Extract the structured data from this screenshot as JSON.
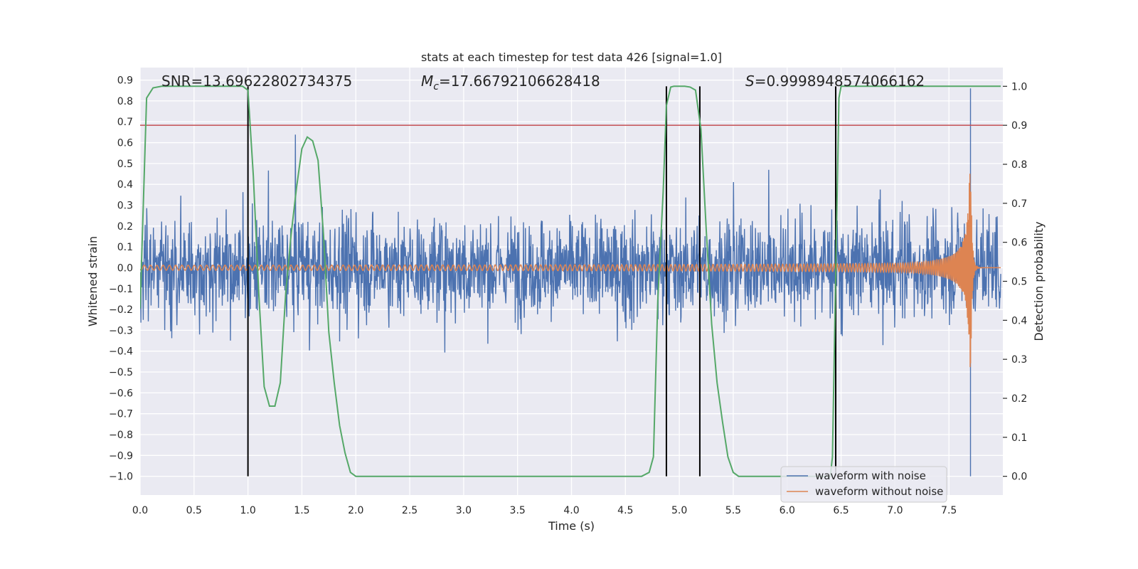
{
  "chart_data": {
    "type": "line",
    "title": "stats at each timestep for test data 426 [signal=1.0]",
    "xlabel": "Time (s)",
    "ylabel": "Whitened strain",
    "ylabel_right": "Detection probability",
    "xlim": [
      0.0,
      8.0
    ],
    "ylim": [
      -1.09,
      0.96
    ],
    "ylim_right": [
      -0.048,
      1.048
    ],
    "grid": true,
    "legend_position": "lower-right",
    "x_ticks": [
      "0.0",
      "0.5",
      "1.0",
      "1.5",
      "2.0",
      "2.5",
      "3.0",
      "3.5",
      "4.0",
      "4.5",
      "5.0",
      "5.5",
      "6.0",
      "6.5",
      "7.0",
      "7.5"
    ],
    "y_ticks": [
      "−1.0",
      "−0.9",
      "−0.8",
      "−0.7",
      "−0.6",
      "−0.5",
      "−0.4",
      "−0.3",
      "−0.2",
      "−0.1",
      "0.0",
      "0.1",
      "0.2",
      "0.3",
      "0.4",
      "0.5",
      "0.6",
      "0.7",
      "0.8",
      "0.9"
    ],
    "y_right_ticks": [
      "0.0",
      "0.1",
      "0.2",
      "0.3",
      "0.4",
      "0.5",
      "0.6",
      "0.7",
      "0.8",
      "0.9",
      "1.0"
    ],
    "annotations": {
      "snr": "SNR=13.69622802734375",
      "mc_value": "=17.66792106628418",
      "s_value": "=0.9998948574066162"
    },
    "colors": {
      "noisy": "#4c72b0",
      "clean": "#dd8452",
      "probability": "#55a868",
      "threshold": "#c44e52",
      "events": "#000000",
      "background": "#eaeaf2"
    },
    "threshold": 0.9,
    "event_lines_x": [
      1.0,
      4.88,
      5.19,
      6.45
    ],
    "event_lines_right_range": [
      0.0,
      1.0
    ],
    "spike_x": 7.7,
    "waveform_with_noise": {
      "name": "waveform with noise",
      "typical_amplitude": 0.3,
      "max": 0.86,
      "min": -1.0
    },
    "waveform_without_noise": {
      "name": "waveform without noise",
      "start_amplitude": 0.012,
      "peak_amplitude": 0.5,
      "peak_min": -0.6,
      "merger_time": 7.7
    },
    "series": [
      {
        "name": "Detection probability",
        "axis": "right",
        "x": [
          0.0,
          0.06,
          0.12,
          0.2,
          0.3,
          0.45,
          0.6,
          0.8,
          0.95,
          1.0,
          1.05,
          1.1,
          1.15,
          1.2,
          1.25,
          1.3,
          1.35,
          1.4,
          1.45,
          1.5,
          1.55,
          1.6,
          1.65,
          1.7,
          1.75,
          1.8,
          1.85,
          1.9,
          1.95,
          2.0,
          2.05,
          2.2,
          2.5,
          3.0,
          3.5,
          4.0,
          4.5,
          4.65,
          4.72,
          4.76,
          4.8,
          4.85,
          4.88,
          4.92,
          4.95,
          5.0,
          5.05,
          5.1,
          5.15,
          5.2,
          5.25,
          5.3,
          5.35,
          5.4,
          5.45,
          5.5,
          5.55,
          5.6,
          6.0,
          6.3,
          6.4,
          6.42,
          6.45,
          6.48,
          6.5,
          6.55,
          7.0,
          7.5,
          7.98
        ],
        "y": [
          0.43,
          0.97,
          0.996,
          1.0,
          1.0,
          1.0,
          1.0,
          1.0,
          1.0,
          0.99,
          0.77,
          0.47,
          0.23,
          0.18,
          0.18,
          0.24,
          0.47,
          0.62,
          0.74,
          0.84,
          0.87,
          0.86,
          0.81,
          0.62,
          0.37,
          0.24,
          0.13,
          0.06,
          0.01,
          0.0,
          0.0,
          0.0,
          0.0,
          0.0,
          0.0,
          0.0,
          0.0,
          0.0,
          0.01,
          0.05,
          0.45,
          0.73,
          0.95,
          0.998,
          1.0,
          1.0,
          1.0,
          0.998,
          0.99,
          0.89,
          0.63,
          0.39,
          0.24,
          0.14,
          0.05,
          0.01,
          0.0,
          0.0,
          0.0,
          0.0,
          0.0,
          0.05,
          0.52,
          0.97,
          1.0,
          1.0,
          1.0,
          1.0,
          1.0
        ]
      }
    ]
  }
}
